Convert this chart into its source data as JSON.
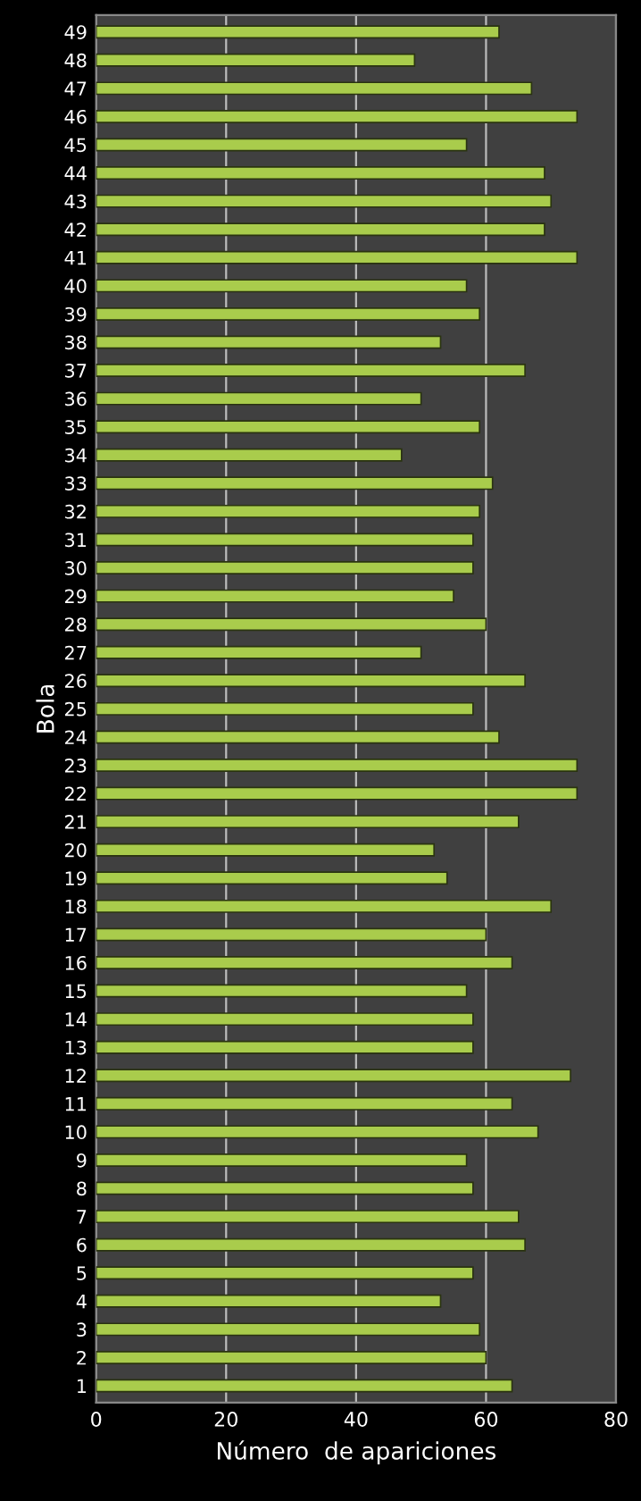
{
  "chart_data": {
    "type": "bar",
    "orientation": "horizontal",
    "xlabel": "Número  de apariciones",
    "ylabel": "Bola",
    "categories": [
      "49",
      "48",
      "47",
      "46",
      "45",
      "44",
      "43",
      "42",
      "41",
      "40",
      "39",
      "38",
      "37",
      "36",
      "35",
      "34",
      "33",
      "32",
      "31",
      "30",
      "29",
      "28",
      "27",
      "26",
      "25",
      "24",
      "23",
      "22",
      "21",
      "20",
      "19",
      "18",
      "17",
      "16",
      "15",
      "14",
      "13",
      "12",
      "11",
      "10",
      "9",
      "8",
      "7",
      "6",
      "5",
      "4",
      "3",
      "2",
      "1"
    ],
    "values": [
      62,
      49,
      67,
      74,
      57,
      69,
      70,
      69,
      74,
      57,
      59,
      53,
      66,
      50,
      59,
      47,
      61,
      59,
      58,
      58,
      55,
      60,
      50,
      66,
      58,
      62,
      74,
      74,
      65,
      52,
      54,
      70,
      60,
      64,
      57,
      58,
      58,
      73,
      64,
      68,
      57,
      58,
      65,
      66,
      58,
      53,
      59,
      60,
      64
    ],
    "color": "#a9cc4c",
    "xlim": [
      0,
      80
    ],
    "xticks": [
      0,
      20,
      40,
      60,
      80
    ],
    "grid": "x"
  }
}
